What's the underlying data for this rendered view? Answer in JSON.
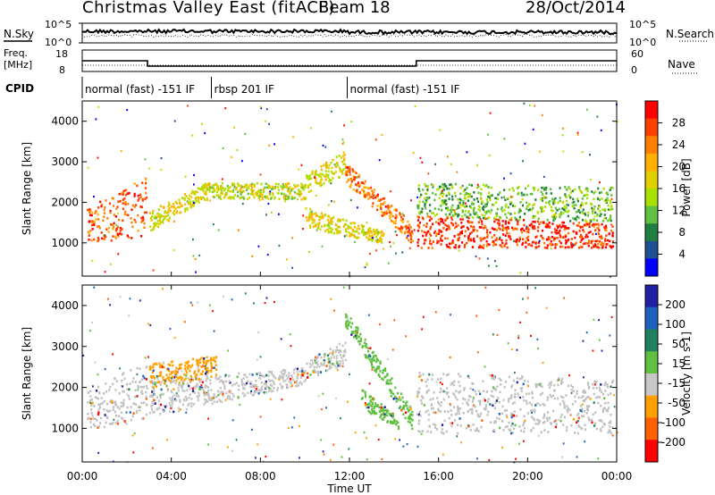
{
  "header": {
    "title": "Christmas Valley East (fitACF)",
    "beam": "Beam 18",
    "date": "28/Oct/2014"
  },
  "nsky_panel": {
    "left_label": "N.Sky",
    "right_label": "N.Search",
    "left_ticks": [
      "10^5",
      "10^0"
    ],
    "right_ticks": [
      "10^5",
      "10^0"
    ]
  },
  "freq_panel": {
    "left_label_line1": "Freq.",
    "left_label_line2": "[MHz]",
    "right_label": "Nave",
    "left_ticks": [
      "18",
      "8"
    ],
    "right_ticks": [
      "60",
      "0"
    ],
    "freq_series": [
      {
        "start": 0.0,
        "end": 2.93,
        "value": 13.0
      },
      {
        "start": 2.93,
        "end": 15.0,
        "value": 10.5
      },
      {
        "start": 15.0,
        "end": 24.0,
        "value": 13.0
      }
    ]
  },
  "cpid_panel": {
    "label": "CPID",
    "segments": [
      {
        "start": 0.0,
        "end": 5.8,
        "text": "normal (fast) -151 IF"
      },
      {
        "start": 5.8,
        "end": 11.9,
        "text": "rbsp 201 IF"
      },
      {
        "start": 11.9,
        "end": 24.0,
        "text": "normal (fast) -151 IF"
      }
    ]
  },
  "chart_data": [
    {
      "type": "heatmap",
      "title": "",
      "quantity": "Power",
      "ylabel": "Slant Range [km]",
      "xlabel": "Time UT",
      "colorbar_label": "Power [dB]",
      "xlim_hours": [
        0,
        24
      ],
      "ylim_km": [
        180,
        4500
      ],
      "y_ticks": [
        "1000",
        "2000",
        "3000",
        "4000"
      ],
      "x_ticks": [
        "00:00",
        "04:00",
        "08:00",
        "12:00",
        "16:00",
        "20:00",
        "00:00"
      ],
      "colorbar_ticks": [
        "28",
        "24",
        "20",
        "16",
        "12",
        "8",
        "4"
      ],
      "colorbar_colors": [
        "#ff0000",
        "#ff4000",
        "#ff8000",
        "#ffb000",
        "#e0d000",
        "#a8e000",
        "#60c040",
        "#208040",
        "#205090",
        "#0000ff"
      ],
      "scatter_bands": [
        {
          "t0": 0.2,
          "t1": 2.9,
          "r_lo0": 1000,
          "r_lo1": 1200,
          "r_hi0": 1900,
          "r_hi1": 2700,
          "level": 0.85
        },
        {
          "t0": 3.0,
          "t1": 5.5,
          "r_lo0": 1300,
          "r_lo1": 2100,
          "r_hi0": 1800,
          "r_hi1": 2500,
          "level": 0.55
        },
        {
          "t0": 5.5,
          "t1": 10.0,
          "r_lo0": 2100,
          "r_lo1": 2100,
          "r_hi0": 2500,
          "r_hi1": 2500,
          "level": 0.5
        },
        {
          "t0": 10.0,
          "t1": 11.8,
          "r_lo0": 2200,
          "r_lo1": 2700,
          "r_hi0": 2700,
          "r_hi1": 3300,
          "level": 0.55
        },
        {
          "t0": 11.8,
          "t1": 14.8,
          "r_lo0": 2500,
          "r_lo1": 1000,
          "r_hi0": 3000,
          "r_hi1": 1500,
          "level": 0.8
        },
        {
          "t0": 10.0,
          "t1": 13.5,
          "r_lo0": 1400,
          "r_lo1": 1000,
          "r_hi0": 1900,
          "r_hi1": 1300,
          "level": 0.55
        },
        {
          "t0": 15.0,
          "t1": 23.8,
          "r_lo0": 900,
          "r_lo1": 900,
          "r_hi0": 1700,
          "r_hi1": 1500,
          "level": 0.92
        },
        {
          "t0": 15.0,
          "t1": 23.8,
          "r_lo0": 1700,
          "r_lo1": 1500,
          "r_hi0": 2500,
          "r_hi1": 2400,
          "level": 0.35
        }
      ]
    },
    {
      "type": "heatmap",
      "title": "",
      "quantity": "Velocity",
      "ylabel": "Slant Range [km]",
      "xlabel": "Time UT",
      "colorbar_label": "Velocity [m s-1]",
      "xlim_hours": [
        0,
        24
      ],
      "ylim_km": [
        180,
        4500
      ],
      "y_ticks": [
        "1000",
        "2000",
        "3000",
        "4000"
      ],
      "x_ticks": [
        "00:00",
        "04:00",
        "08:00",
        "12:00",
        "16:00",
        "20:00",
        "00:00"
      ],
      "colorbar_ticks": [
        "200",
        "100",
        "50",
        "15",
        "-15",
        "-50",
        "-100",
        "-200"
      ],
      "colorbar_colors": [
        "#2020a0",
        "#2060c0",
        "#208060",
        "#60c040",
        "#c8c8c8",
        "#ffa000",
        "#ff6000",
        "#ff0000"
      ],
      "scatter_bands": [
        {
          "t0": 0.2,
          "t1": 2.9,
          "r_lo0": 1000,
          "r_lo1": 1200,
          "r_hi0": 1900,
          "r_hi1": 2700,
          "color": "#c0c0c0"
        },
        {
          "t0": 3.0,
          "t1": 10.0,
          "r_lo0": 1300,
          "r_lo1": 2100,
          "r_hi0": 2200,
          "r_hi1": 2500,
          "color": "#c4c4c4"
        },
        {
          "t0": 10.0,
          "t1": 11.8,
          "r_lo0": 2200,
          "r_lo1": 2600,
          "r_hi0": 2700,
          "r_hi1": 3200,
          "color": "#c4c4c4"
        },
        {
          "t0": 11.8,
          "t1": 14.8,
          "r_lo0": 3500,
          "r_lo1": 1000,
          "r_hi0": 3900,
          "r_hi1": 1500,
          "color": "#60c040"
        },
        {
          "t0": 12.5,
          "t1": 14.2,
          "r_lo0": 1500,
          "r_lo1": 1000,
          "r_hi0": 2000,
          "r_hi1": 1300,
          "color": "#60c040"
        },
        {
          "t0": 15.0,
          "t1": 23.8,
          "r_lo0": 900,
          "r_lo1": 900,
          "r_hi0": 2400,
          "r_hi1": 2200,
          "color": "#c0c0c0"
        },
        {
          "t0": 3.0,
          "t1": 6.0,
          "r_lo0": 2000,
          "r_lo1": 2300,
          "r_hi0": 2600,
          "r_hi1": 2800,
          "color": "#ffa000"
        }
      ]
    }
  ]
}
